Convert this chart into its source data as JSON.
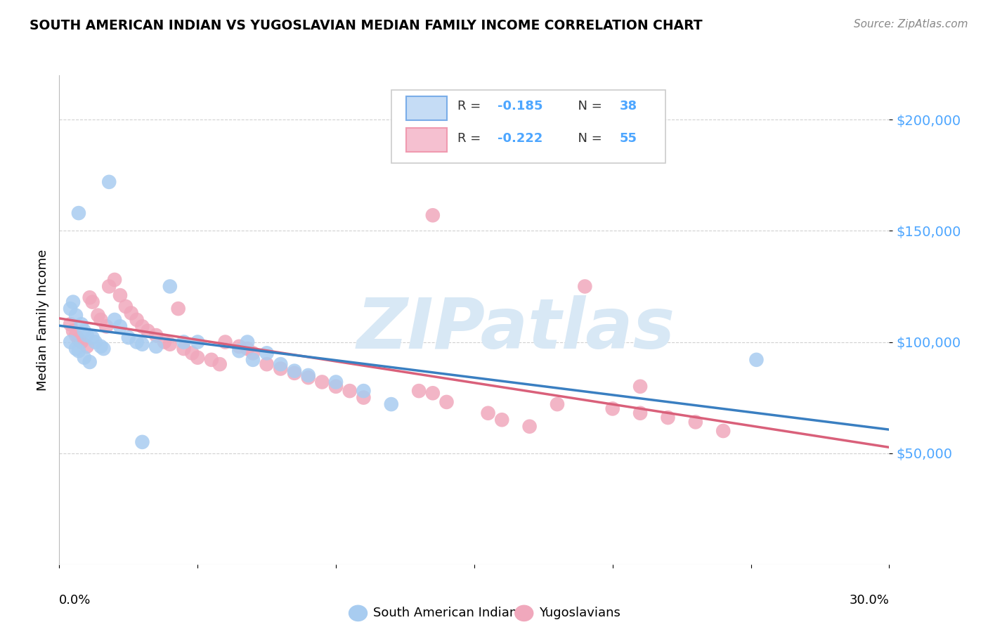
{
  "title": "SOUTH AMERICAN INDIAN VS YUGOSLAVIAN MEDIAN FAMILY INCOME CORRELATION CHART",
  "source": "Source: ZipAtlas.com",
  "ylabel": "Median Family Income",
  "yticks": [
    50000,
    100000,
    150000,
    200000
  ],
  "ytick_labels": [
    "$50,000",
    "$100,000",
    "$150,000",
    "$200,000"
  ],
  "xlim": [
    0.0,
    0.3
  ],
  "ylim": [
    0,
    220000
  ],
  "legend_label1": "South American Indians",
  "legend_label2": "Yugoslavians",
  "blue_scatter_color": "#a8ccf0",
  "pink_scatter_color": "#f0a8bc",
  "blue_line_color": "#3a7fc1",
  "pink_line_color": "#d9607a",
  "blue_legend_fill": "#c5dcf5",
  "blue_legend_edge": "#7aade8",
  "pink_legend_fill": "#f5c0d0",
  "pink_legend_edge": "#f09ab0",
  "ytick_color": "#4da6ff",
  "watermark_color": "#d8e8f5",
  "background_color": "#ffffff",
  "grid_color": "#cccccc",
  "blue_R": -0.185,
  "blue_N": 38,
  "pink_R": -0.222,
  "pink_N": 55,
  "blue_x": [
    0.018,
    0.007,
    0.004,
    0.005,
    0.006,
    0.008,
    0.009,
    0.01,
    0.012,
    0.013,
    0.015,
    0.016,
    0.02,
    0.022,
    0.025,
    0.028,
    0.03,
    0.035,
    0.04,
    0.045,
    0.05,
    0.065,
    0.068,
    0.07,
    0.075,
    0.08,
    0.085,
    0.09,
    0.1,
    0.11,
    0.12,
    0.004,
    0.006,
    0.007,
    0.009,
    0.011,
    0.252,
    0.03
  ],
  "blue_y": [
    172000,
    158000,
    115000,
    118000,
    112000,
    108000,
    105000,
    103000,
    102000,
    100000,
    98000,
    97000,
    110000,
    107000,
    102000,
    100000,
    99000,
    98000,
    125000,
    100000,
    100000,
    96000,
    100000,
    92000,
    95000,
    90000,
    87000,
    85000,
    82000,
    78000,
    72000,
    100000,
    97000,
    96000,
    93000,
    91000,
    92000,
    55000
  ],
  "pink_x": [
    0.004,
    0.005,
    0.006,
    0.007,
    0.008,
    0.01,
    0.011,
    0.012,
    0.014,
    0.015,
    0.017,
    0.018,
    0.02,
    0.022,
    0.024,
    0.026,
    0.028,
    0.03,
    0.032,
    0.035,
    0.038,
    0.04,
    0.043,
    0.045,
    0.048,
    0.05,
    0.055,
    0.058,
    0.06,
    0.065,
    0.068,
    0.07,
    0.075,
    0.08,
    0.085,
    0.09,
    0.095,
    0.1,
    0.105,
    0.11,
    0.13,
    0.135,
    0.14,
    0.155,
    0.16,
    0.17,
    0.18,
    0.19,
    0.2,
    0.21,
    0.21,
    0.22,
    0.23,
    0.24,
    0.135
  ],
  "pink_y": [
    108000,
    105000,
    103000,
    101000,
    100000,
    98000,
    120000,
    118000,
    112000,
    110000,
    107000,
    125000,
    128000,
    121000,
    116000,
    113000,
    110000,
    107000,
    105000,
    103000,
    100000,
    99000,
    115000,
    97000,
    95000,
    93000,
    92000,
    90000,
    100000,
    98000,
    97000,
    95000,
    90000,
    88000,
    86000,
    84000,
    82000,
    80000,
    78000,
    75000,
    78000,
    157000,
    73000,
    68000,
    65000,
    62000,
    72000,
    125000,
    70000,
    68000,
    80000,
    66000,
    64000,
    60000,
    77000
  ]
}
